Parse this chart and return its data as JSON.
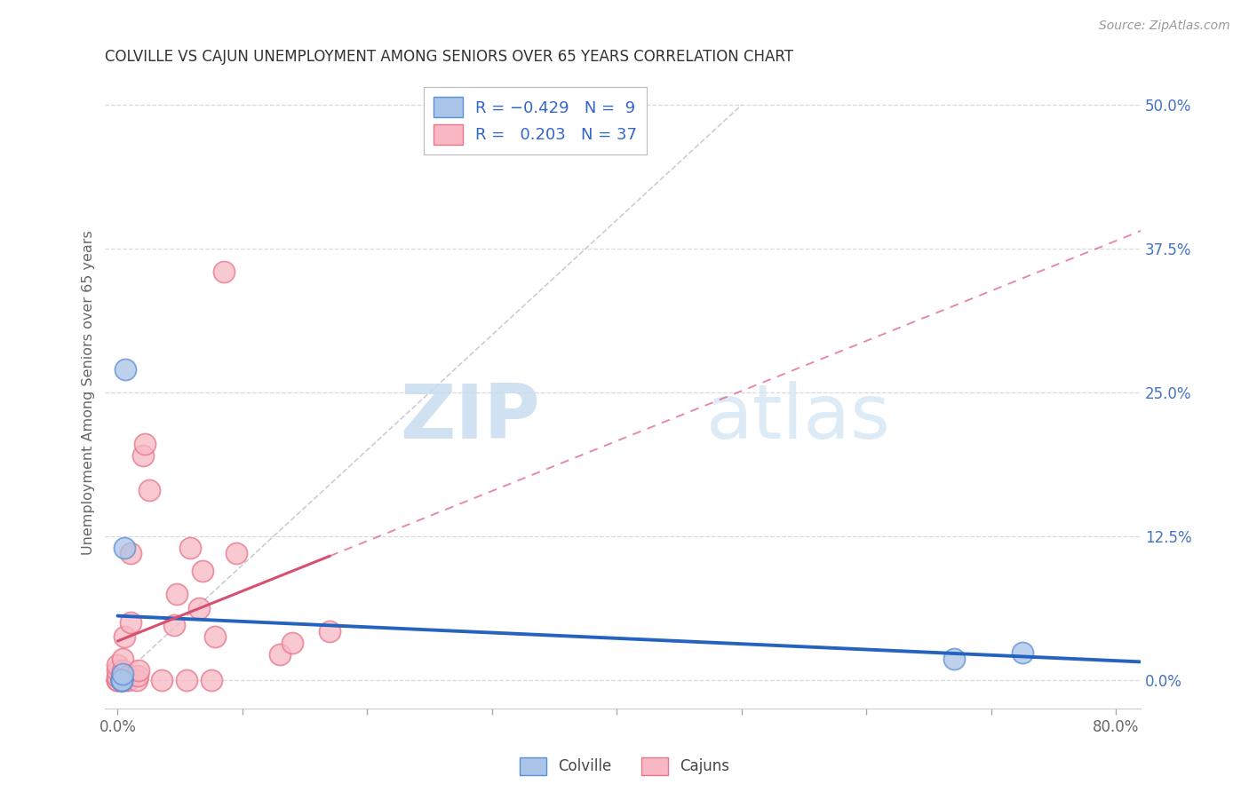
{
  "title": "COLVILLE VS CAJUN UNEMPLOYMENT AMONG SENIORS OVER 65 YEARS CORRELATION CHART",
  "source": "Source: ZipAtlas.com",
  "ylabel": "Unemployment Among Seniors over 65 years",
  "xlim": [
    -0.01,
    0.82
  ],
  "ylim": [
    -0.025,
    0.525
  ],
  "xtick_values": [
    0.0,
    0.1,
    0.2,
    0.3,
    0.4,
    0.5,
    0.6,
    0.7,
    0.8
  ],
  "xtick_label_left": "0.0%",
  "xtick_label_right": "80.0%",
  "ytick_values": [
    0.0,
    0.125,
    0.25,
    0.375,
    0.5
  ],
  "ytick_labels": [
    "0.0%",
    "12.5%",
    "25.0%",
    "37.5%",
    "50.0%"
  ],
  "colville_fill_color": "#aac4e8",
  "cajun_fill_color": "#f7b8c4",
  "colville_edge_color": "#5b8fd4",
  "cajun_edge_color": "#e8758a",
  "colville_line_color": "#2563c0",
  "cajun_line_color": "#d94f70",
  "diagonal_color": "#c0c0cc",
  "R_colville": -0.429,
  "N_colville": 9,
  "R_cajun": 0.203,
  "N_cajun": 37,
  "colville_x": [
    0.003,
    0.003,
    0.003,
    0.003,
    0.004,
    0.005,
    0.006,
    0.67,
    0.725
  ],
  "colville_y": [
    0.0,
    0.0,
    0.0,
    0.0,
    0.005,
    0.115,
    0.27,
    0.018,
    0.024
  ],
  "cajun_x": [
    0.0,
    0.0,
    0.0,
    0.0,
    0.0,
    0.0,
    0.003,
    0.003,
    0.003,
    0.004,
    0.004,
    0.005,
    0.005,
    0.008,
    0.009,
    0.01,
    0.01,
    0.015,
    0.016,
    0.017,
    0.02,
    0.022,
    0.025,
    0.035,
    0.045,
    0.047,
    0.055,
    0.058,
    0.065,
    0.068,
    0.075,
    0.078,
    0.085,
    0.095,
    0.13,
    0.14,
    0.17
  ],
  "cajun_y": [
    0.0,
    0.0,
    0.0,
    0.003,
    0.008,
    0.013,
    0.0,
    0.0,
    0.004,
    0.008,
    0.018,
    0.0,
    0.038,
    0.0,
    0.004,
    0.05,
    0.11,
    0.0,
    0.004,
    0.008,
    0.195,
    0.205,
    0.165,
    0.0,
    0.048,
    0.075,
    0.0,
    0.115,
    0.062,
    0.095,
    0.0,
    0.038,
    0.355,
    0.11,
    0.022,
    0.032,
    0.042
  ],
  "watermark_zip": "ZIP",
  "watermark_atlas": "atlas",
  "background_color": "#ffffff",
  "legend_colville_label": "Colville",
  "legend_cajun_label": "Cajuns",
  "grid_color": "#d8d8e0",
  "spine_color": "#cccccc",
  "title_color": "#333333",
  "source_color": "#999999",
  "ytick_color": "#4472c4",
  "xtick_color": "#666666"
}
